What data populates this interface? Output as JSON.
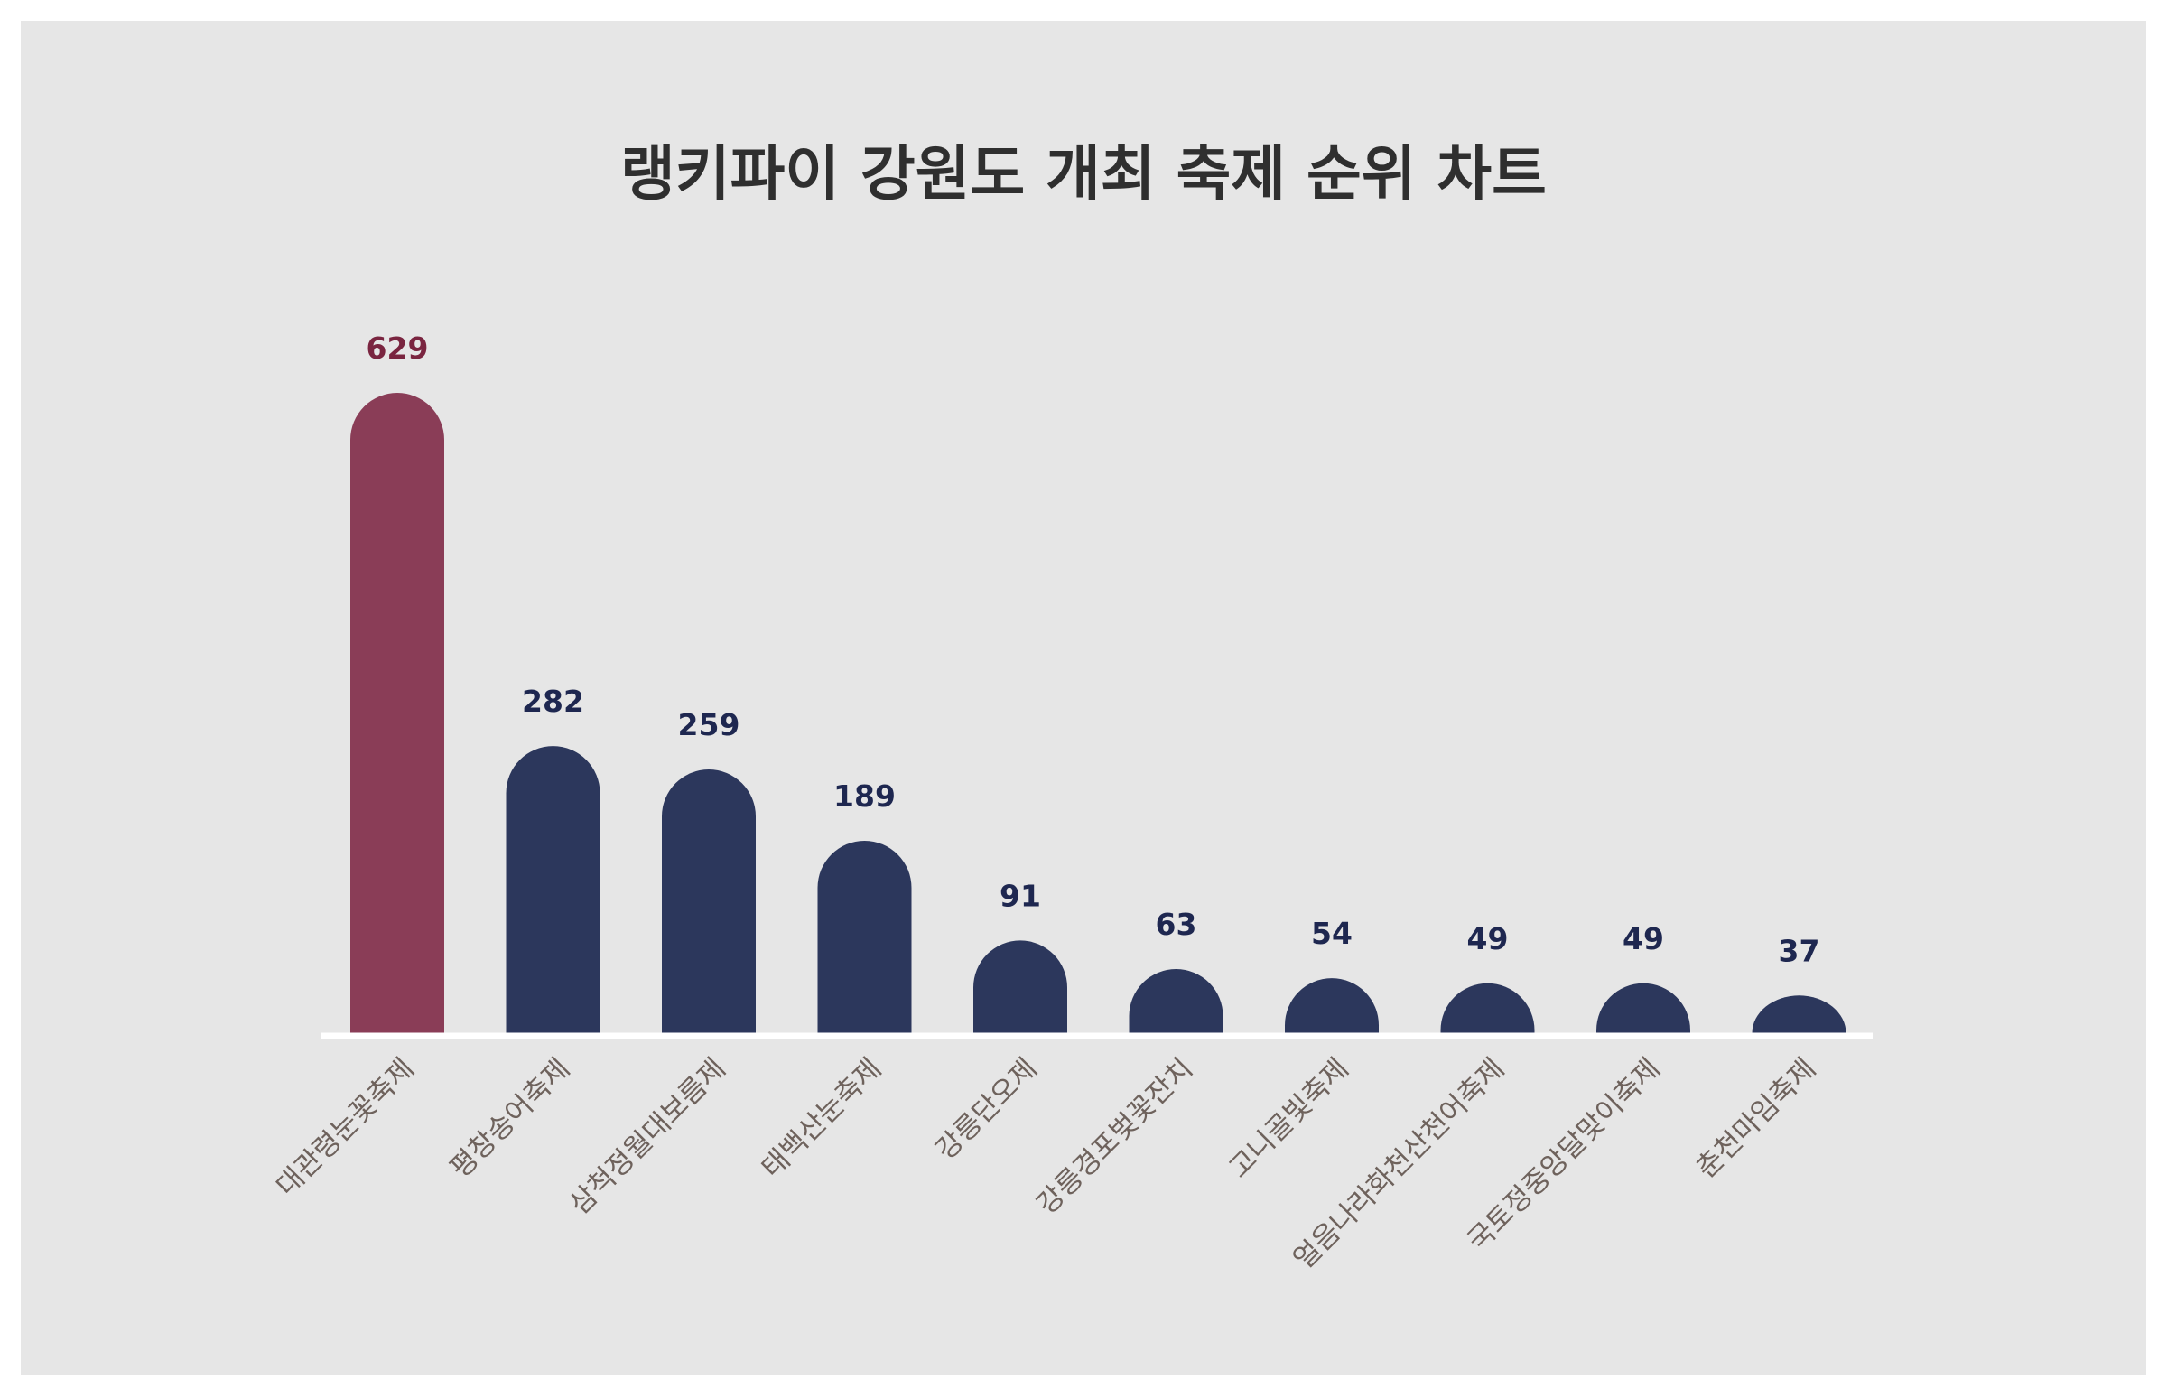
{
  "chart_data": {
    "type": "bar",
    "title": "랭키파이 강원도 개최 축제 순위 차트",
    "categories": [
      "대관령눈꽃축제",
      "평창송어축제",
      "삼척정월대보름제",
      "태백산눈축제",
      "강릉단오제",
      "강릉경포벚꽃잔치",
      "고니골빛축제",
      "얼음나라화천산천어축제",
      "국토정중앙달맞이축제",
      "춘천마임축제"
    ],
    "values": [
      629,
      282,
      259,
      189,
      91,
      63,
      54,
      49,
      49,
      37
    ],
    "xlabel": "",
    "ylabel": "",
    "ylim": [
      0,
      629
    ],
    "grid": false,
    "legend": "none",
    "colors": {
      "highlight": "#8a3d57",
      "bar": "#2c375c",
      "highlight_label": "#7a2540",
      "value_label": "#1e2750",
      "category_label": "#6e625c",
      "baseline": "#ffffff",
      "panel_background": "#e6e6e6",
      "title": "#2f2f2f"
    }
  }
}
